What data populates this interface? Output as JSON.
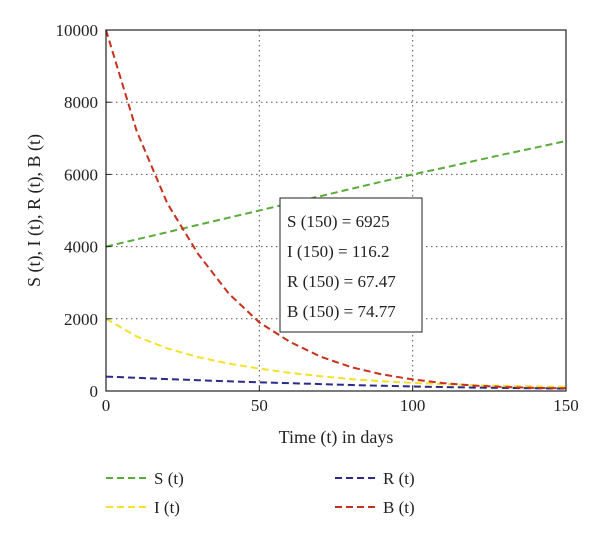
{
  "chart_data": {
    "type": "line",
    "xlabel": "Time (t) in days",
    "ylabel": "S (t), I (t), R (t), B (t)",
    "xlim": [
      0,
      150
    ],
    "ylim": [
      0,
      10000
    ],
    "xticks": [
      0,
      50,
      100,
      150
    ],
    "yticks": [
      0,
      2000,
      4000,
      6000,
      8000,
      10000
    ],
    "grid": true,
    "legend_position": "bottom",
    "x": [
      0,
      10,
      20,
      30,
      40,
      50,
      60,
      70,
      80,
      90,
      100,
      110,
      120,
      130,
      140,
      150
    ],
    "series": [
      {
        "name": "S (t)",
        "color": "#5aab3c",
        "values": [
          4000,
          4200,
          4400,
          4600,
          4800,
          5000,
          5200,
          5400,
          5600,
          5800,
          6000,
          6180,
          6370,
          6560,
          6740,
          6925
        ]
      },
      {
        "name": "I (t)",
        "color": "#f5e12a",
        "values": [
          2000,
          1510,
          1180,
          940,
          760,
          620,
          500,
          410,
          330,
          270,
          225,
          190,
          160,
          140,
          125,
          116.2
        ]
      },
      {
        "name": "R (t)",
        "color": "#2b2a8a",
        "values": [
          400,
          365,
          330,
          300,
          270,
          240,
          215,
          190,
          165,
          145,
          125,
          110,
          95,
          85,
          75,
          67.47
        ]
      },
      {
        "name": "B (t)",
        "color": "#c8301e",
        "values": [
          10000,
          7200,
          5200,
          3800,
          2700,
          1900,
          1360,
          950,
          660,
          460,
          320,
          220,
          150,
          110,
          85,
          74.77
        ]
      }
    ],
    "annotations": [
      "S (150) = 6925",
      "I (150) = 116.2",
      "R (150) = 67.47",
      "B (150) = 74.77"
    ],
    "legend_layout": [
      [
        "S (t)",
        "R (t)"
      ],
      [
        "I (t)",
        "B (t)"
      ]
    ]
  }
}
